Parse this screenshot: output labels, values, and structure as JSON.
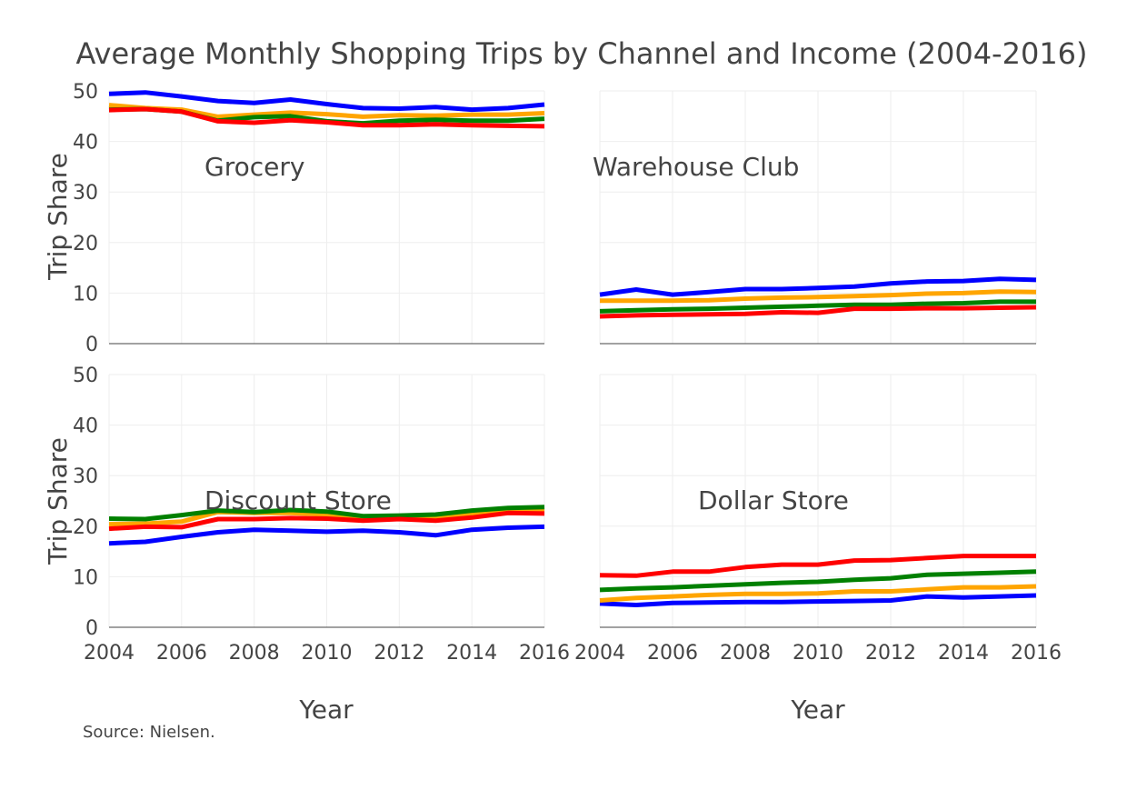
{
  "chart_data": {
    "type": "line",
    "title": "Average Monthly Shopping Trips by Channel and Income (2004-2016)",
    "xlabel": "Year",
    "ylabel": "Trip Share",
    "source": "Source: Nielsen.",
    "x": [
      2004,
      2005,
      2006,
      2007,
      2008,
      2009,
      2010,
      2011,
      2012,
      2013,
      2014,
      2015,
      2016
    ],
    "x_ticks": [
      "2004",
      "2006",
      "2008",
      "2010",
      "2012",
      "2014",
      "2016"
    ],
    "y_ticks": [
      "0",
      "10",
      "20",
      "30",
      "40",
      "50"
    ],
    "xlim": [
      2004,
      2016
    ],
    "ylim": [
      0,
      50
    ],
    "grid": true,
    "colors": {
      "blue": "#0000ff",
      "orange": "#ffa500",
      "green": "#008000",
      "red": "#ff0000"
    },
    "panels": [
      {
        "label": "Grocery",
        "series": [
          {
            "color": "#0000ff",
            "values": [
              49.4,
              49.7,
              48.9,
              48.0,
              47.6,
              48.3,
              47.4,
              46.6,
              46.5,
              46.8,
              46.3,
              46.6,
              47.3
            ]
          },
          {
            "color": "#ffa500",
            "values": [
              47.2,
              46.6,
              46.3,
              44.9,
              45.3,
              45.7,
              45.4,
              44.9,
              45.2,
              45.1,
              45.3,
              45.3,
              45.6
            ]
          },
          {
            "color": "#008000",
            "values": [
              46.3,
              46.4,
              45.9,
              44.1,
              44.8,
              45.0,
              44.0,
              43.6,
              44.1,
              44.3,
              44.1,
              44.1,
              44.5
            ]
          },
          {
            "color": "#ff0000",
            "values": [
              46.2,
              46.4,
              45.9,
              44.0,
              43.7,
              44.2,
              43.8,
              43.2,
              43.2,
              43.4,
              43.2,
              43.1,
              43.0
            ]
          }
        ]
      },
      {
        "label": "Warehouse Club",
        "series": [
          {
            "color": "#0000ff",
            "values": [
              9.7,
              10.7,
              9.7,
              10.2,
              10.8,
              10.8,
              11.0,
              11.3,
              11.9,
              12.3,
              12.4,
              12.8,
              12.6
            ]
          },
          {
            "color": "#ffa500",
            "values": [
              8.5,
              8.5,
              8.5,
              8.6,
              8.9,
              9.1,
              9.2,
              9.4,
              9.6,
              9.9,
              10.0,
              10.3,
              10.2
            ]
          },
          {
            "color": "#008000",
            "values": [
              6.4,
              6.6,
              6.8,
              6.9,
              7.1,
              7.3,
              7.5,
              7.7,
              7.7,
              7.9,
              8.0,
              8.3,
              8.3
            ]
          },
          {
            "color": "#ff0000",
            "values": [
              5.4,
              5.6,
              5.7,
              5.8,
              5.9,
              6.2,
              6.1,
              6.9,
              6.9,
              7.0,
              7.0,
              7.1,
              7.2
            ]
          }
        ]
      },
      {
        "label": "Discount Store",
        "series": [
          {
            "color": "#0000ff",
            "values": [
              16.6,
              16.9,
              17.9,
              18.8,
              19.3,
              19.1,
              18.9,
              19.1,
              18.8,
              18.2,
              19.3,
              19.7,
              19.9
            ]
          },
          {
            "color": "#ffa500",
            "values": [
              20.4,
              20.5,
              20.9,
              22.8,
              22.6,
              22.6,
              22.3,
              21.8,
              21.9,
              21.6,
              22.5,
              23.2,
              23.1
            ]
          },
          {
            "color": "#008000",
            "values": [
              21.5,
              21.4,
              22.2,
              23.1,
              22.8,
              23.2,
              22.9,
              22.0,
              22.1,
              22.3,
              23.1,
              23.6,
              23.8
            ]
          },
          {
            "color": "#ff0000",
            "values": [
              19.5,
              19.9,
              19.8,
              21.4,
              21.4,
              21.6,
              21.5,
              21.1,
              21.4,
              21.1,
              21.7,
              22.6,
              22.5
            ]
          }
        ]
      },
      {
        "label": "Dollar Store",
        "series": [
          {
            "color": "#0000ff",
            "values": [
              4.7,
              4.4,
              4.8,
              4.9,
              5.0,
              5.0,
              5.1,
              5.2,
              5.3,
              6.1,
              5.9,
              6.1,
              6.3
            ]
          },
          {
            "color": "#ffa500",
            "values": [
              5.3,
              5.8,
              6.1,
              6.4,
              6.6,
              6.6,
              6.7,
              7.1,
              7.1,
              7.5,
              7.9,
              7.9,
              8.1
            ]
          },
          {
            "color": "#008000",
            "values": [
              7.4,
              7.7,
              7.9,
              8.2,
              8.5,
              8.8,
              9.0,
              9.4,
              9.7,
              10.4,
              10.6,
              10.8,
              11.0
            ]
          },
          {
            "color": "#ff0000",
            "values": [
              10.3,
              10.2,
              11.0,
              11.0,
              11.9,
              12.4,
              12.4,
              13.2,
              13.3,
              13.7,
              14.1,
              14.1,
              14.1
            ]
          }
        ]
      }
    ]
  }
}
